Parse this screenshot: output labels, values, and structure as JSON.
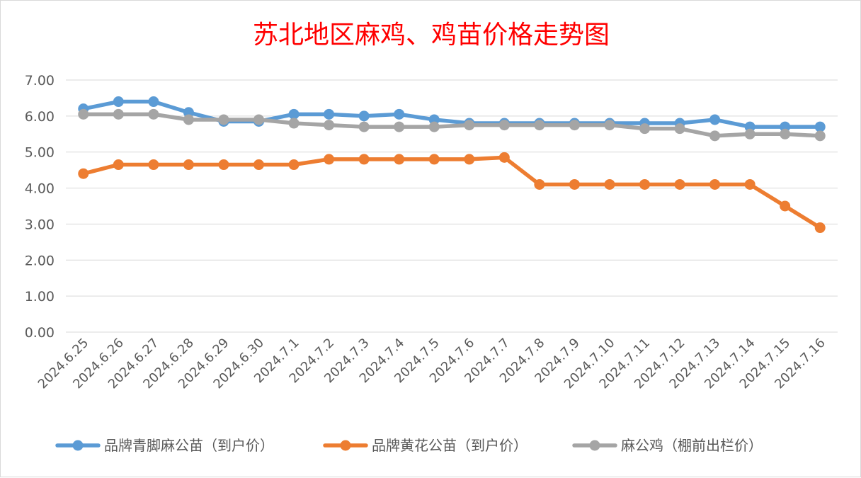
{
  "chart_data": {
    "type": "line",
    "title": "苏北地区麻鸡、鸡苗价格走势图",
    "xlabel": "",
    "ylabel": "",
    "categories": [
      "2024.6.25",
      "2024.6.26",
      "2024.6.27",
      "2024.6.28",
      "2024.6.29",
      "2024.6.30",
      "2024.7.1",
      "2024.7.2",
      "2024.7.3",
      "2024.7.4",
      "2024.7.5",
      "2024.7.6",
      "2024.7.7",
      "2024.7.8",
      "2024.7.9",
      "2024.7.10",
      "2024.7.11",
      "2024.7.12",
      "2024.7.13",
      "2024.7.14",
      "2024.7.15",
      "2024.7.16"
    ],
    "y_ticks": [
      "0.00",
      "1.00",
      "2.00",
      "3.00",
      "4.00",
      "5.00",
      "6.00",
      "7.00"
    ],
    "ylim": [
      0,
      7
    ],
    "grid": true,
    "legend_position": "bottom",
    "series": [
      {
        "name": "品牌青脚麻公苗（到户价）",
        "color": "#5b9bd5",
        "values": [
          6.2,
          6.4,
          6.4,
          6.1,
          5.85,
          5.85,
          6.05,
          6.05,
          6.0,
          6.05,
          5.9,
          5.8,
          5.8,
          5.8,
          5.8,
          5.8,
          5.8,
          5.8,
          5.9,
          5.7,
          5.7,
          5.7
        ]
      },
      {
        "name": "品牌黄花公苗（到户价）",
        "color": "#ed7d31",
        "values": [
          4.4,
          4.65,
          4.65,
          4.65,
          4.65,
          4.65,
          4.65,
          4.8,
          4.8,
          4.8,
          4.8,
          4.8,
          4.85,
          4.1,
          4.1,
          4.1,
          4.1,
          4.1,
          4.1,
          4.1,
          3.5,
          2.9
        ]
      },
      {
        "name": "麻公鸡（棚前出栏价）",
        "color": "#a5a5a5",
        "values": [
          6.05,
          6.05,
          6.05,
          5.9,
          5.9,
          5.9,
          5.8,
          5.75,
          5.7,
          5.7,
          5.7,
          5.75,
          5.75,
          5.75,
          5.75,
          5.75,
          5.65,
          5.65,
          5.45,
          5.5,
          5.5,
          5.45
        ]
      }
    ]
  }
}
